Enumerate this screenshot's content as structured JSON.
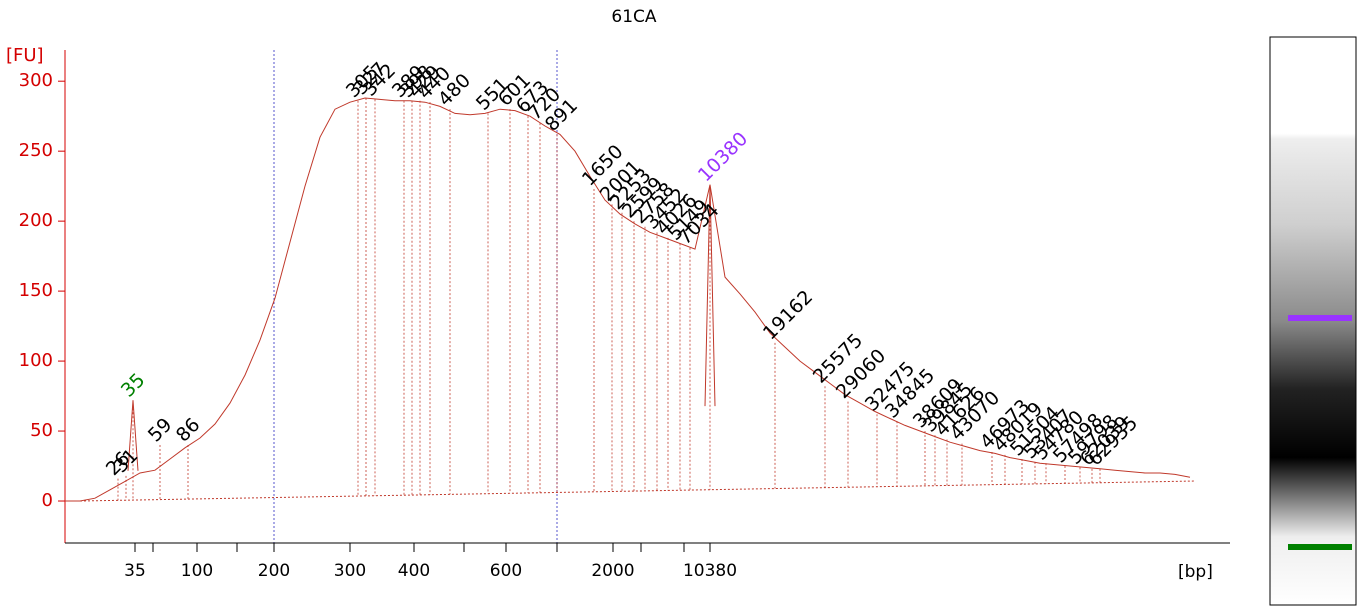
{
  "chart_data": {
    "type": "line",
    "title": "61CA",
    "y_label": "[FU]",
    "x_label": "[bp]",
    "ylim": [
      -30,
      318
    ],
    "yticks": [
      0,
      50,
      100,
      150,
      200,
      250,
      300
    ],
    "xticks": [
      35,
      100,
      200,
      300,
      400,
      600,
      2000,
      10380
    ],
    "axis_color": "#d40000",
    "trace": {
      "color": "#c0392b",
      "values": [
        0,
        0,
        2,
        8,
        14,
        20,
        22,
        30,
        38,
        45,
        55,
        70,
        90,
        115,
        145,
        185,
        225,
        260,
        280,
        285,
        288,
        287,
        286,
        286,
        285,
        282,
        277,
        276,
        277,
        280,
        279,
        275,
        268,
        262,
        250,
        232,
        215,
        205,
        198,
        192,
        188,
        184,
        180,
        226,
        160,
        148,
        135,
        120,
        110,
        100,
        92,
        84,
        76,
        70,
        64,
        59,
        54,
        50,
        46,
        42,
        39,
        36,
        34,
        31,
        29,
        27,
        26,
        25,
        24,
        23,
        22,
        21,
        20,
        20,
        19,
        17
      ]
    },
    "peaks": [
      {
        "label": 26,
        "height": 16
      },
      {
        "label": 31,
        "height": 18
      },
      {
        "label": 35,
        "height": 72,
        "color": "#008000"
      },
      {
        "label": 59,
        "height": 40
      },
      {
        "label": 86,
        "height": 40
      },
      {
        "label": 305,
        "height": 286
      },
      {
        "label": 327,
        "height": 288
      },
      {
        "label": 342,
        "height": 287
      },
      {
        "label": 389,
        "height": 286
      },
      {
        "label": 398,
        "height": 286
      },
      {
        "label": 429,
        "height": 286
      },
      {
        "label": 440,
        "height": 285
      },
      {
        "label": 480,
        "height": 280
      },
      {
        "label": 551,
        "height": 277
      },
      {
        "label": 601,
        "height": 280
      },
      {
        "label": 673,
        "height": 275
      },
      {
        "label": 720,
        "height": 270
      },
      {
        "label": 891,
        "height": 262
      },
      {
        "label": 1650,
        "height": 223
      },
      {
        "label": 2001,
        "height": 212
      },
      {
        "label": 2253,
        "height": 206
      },
      {
        "label": 2599,
        "height": 200
      },
      {
        "label": 2758,
        "height": 196
      },
      {
        "label": 3452,
        "height": 192
      },
      {
        "label": 4026,
        "height": 188
      },
      {
        "label": 5149,
        "height": 184
      },
      {
        "label": 7034,
        "height": 181
      },
      {
        "label": 10380,
        "height": 226,
        "color": "#9933ff"
      },
      {
        "label": 19162,
        "height": 113
      },
      {
        "label": 25575,
        "height": 82
      },
      {
        "label": 29060,
        "height": 71
      },
      {
        "label": 32475,
        "height": 62
      },
      {
        "label": 34845,
        "height": 57
      },
      {
        "label": 38609,
        "height": 50
      },
      {
        "label": 39845,
        "height": 47
      },
      {
        "label": 41626,
        "height": 44
      },
      {
        "label": 43070,
        "height": 41
      },
      {
        "label": 46973,
        "height": 35
      },
      {
        "label": 48019,
        "height": 33
      },
      {
        "label": 51504,
        "height": 30
      },
      {
        "label": 53407,
        "height": 28
      },
      {
        "label": 54780,
        "height": 27
      },
      {
        "label": 57498,
        "height": 25
      },
      {
        "label": 59798,
        "height": 24
      },
      {
        "label": 62039,
        "height": 23
      },
      {
        "label": 62935,
        "height": 23
      }
    ]
  }
}
